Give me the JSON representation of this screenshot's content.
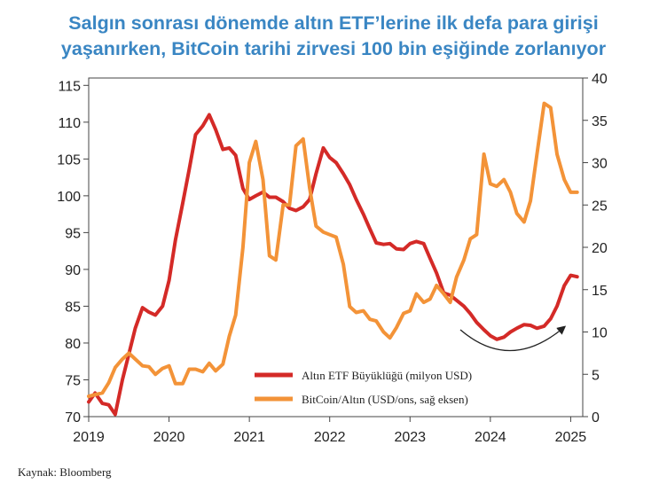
{
  "chart_data": {
    "type": "line",
    "title_line1": "Salgın sonrası dönemde altın ETF’lerine ilk defa para girişi",
    "title_line2": "yaşanırken, BitCoin tarihi zirvesi 100 bin eşiğinde zorlanıyor",
    "source": "Kaynak: Bloomberg",
    "x_ticks": [
      "2019",
      "2020",
      "2021",
      "2022",
      "2023",
      "2024",
      "2025"
    ],
    "x_range": [
      2019.0,
      2025.15
    ],
    "y_left_ticks": [
      "70",
      "75",
      "80",
      "85",
      "90",
      "95",
      "100",
      "105",
      "110",
      "115"
    ],
    "y_left_range": [
      70,
      116
    ],
    "y_right_ticks": [
      "0",
      "5",
      "10",
      "15",
      "20",
      "25",
      "30",
      "35",
      "40"
    ],
    "y_right_range": [
      0,
      40
    ],
    "colors": {
      "gold": "#d42a27",
      "btc": "#f39338"
    },
    "series": [
      {
        "name": "Altın ETF Büyüklüğü (milyon USD)",
        "axis": "left",
        "color": "#d42a27",
        "x": [
          2019.0,
          2019.08,
          2019.17,
          2019.25,
          2019.33,
          2019.42,
          2019.5,
          2019.58,
          2019.67,
          2019.75,
          2019.83,
          2019.92,
          2020.0,
          2020.08,
          2020.17,
          2020.25,
          2020.33,
          2020.42,
          2020.5,
          2020.58,
          2020.67,
          2020.75,
          2020.83,
          2020.92,
          2021.0,
          2021.08,
          2021.17,
          2021.25,
          2021.33,
          2021.42,
          2021.5,
          2021.58,
          2021.67,
          2021.75,
          2021.83,
          2021.92,
          2022.0,
          2022.08,
          2022.17,
          2022.25,
          2022.33,
          2022.42,
          2022.5,
          2022.58,
          2022.67,
          2022.75,
          2022.83,
          2022.92,
          2023.0,
          2023.08,
          2023.17,
          2023.25,
          2023.33,
          2023.42,
          2023.5,
          2023.58,
          2023.67,
          2023.75,
          2023.83,
          2023.92,
          2024.0,
          2024.08,
          2024.17,
          2024.25,
          2024.33,
          2024.42,
          2024.5,
          2024.58,
          2024.67,
          2024.75,
          2024.83,
          2024.92,
          2025.0,
          2025.08
        ],
        "values": [
          72.0,
          73.2,
          71.8,
          71.6,
          70.3,
          75.0,
          78.5,
          82.0,
          84.8,
          84.2,
          83.8,
          85.0,
          88.5,
          94.0,
          99.0,
          103.5,
          108.3,
          109.5,
          111.0,
          109.0,
          106.3,
          106.5,
          105.5,
          101.0,
          99.5,
          100.0,
          100.5,
          99.8,
          99.8,
          99.2,
          98.3,
          98.0,
          98.5,
          99.5,
          103.0,
          106.5,
          105.2,
          104.5,
          103.0,
          101.5,
          99.5,
          97.5,
          95.5,
          93.6,
          93.4,
          93.5,
          92.8,
          92.7,
          93.5,
          93.8,
          93.5,
          91.5,
          89.5,
          86.8,
          86.5,
          85.8,
          85.0,
          84.0,
          82.8,
          81.8,
          81.0,
          80.5,
          80.8,
          81.5,
          82.0,
          82.5,
          82.4,
          82.0,
          82.3,
          83.3,
          85.0,
          87.8,
          89.2,
          89.0
        ]
      },
      {
        "name": "BitCoin/Altın (USD/ons, sağ eksen)",
        "axis": "right",
        "color": "#f39338",
        "x": [
          2019.0,
          2019.08,
          2019.17,
          2019.25,
          2019.33,
          2019.42,
          2019.5,
          2019.58,
          2019.67,
          2019.75,
          2019.83,
          2019.92,
          2020.0,
          2020.08,
          2020.17,
          2020.25,
          2020.33,
          2020.42,
          2020.5,
          2020.58,
          2020.67,
          2020.75,
          2020.83,
          2020.92,
          2021.0,
          2021.08,
          2021.17,
          2021.25,
          2021.33,
          2021.42,
          2021.5,
          2021.58,
          2021.67,
          2021.75,
          2021.83,
          2021.92,
          2022.0,
          2022.08,
          2022.17,
          2022.25,
          2022.33,
          2022.42,
          2022.5,
          2022.58,
          2022.67,
          2022.75,
          2022.83,
          2022.92,
          2023.0,
          2023.08,
          2023.17,
          2023.25,
          2023.33,
          2023.42,
          2023.5,
          2023.58,
          2023.67,
          2023.75,
          2023.83,
          2023.92,
          2024.0,
          2024.08,
          2024.17,
          2024.25,
          2024.33,
          2024.42,
          2024.5,
          2024.58,
          2024.67,
          2024.75,
          2024.83,
          2024.92,
          2025.0,
          2025.08
        ],
        "values": [
          2.4,
          2.6,
          2.8,
          4.0,
          5.8,
          6.8,
          7.5,
          6.8,
          6.0,
          5.9,
          5.0,
          5.7,
          6.0,
          3.9,
          3.9,
          5.6,
          5.6,
          5.3,
          6.3,
          5.4,
          6.2,
          9.5,
          12.0,
          20.0,
          30.0,
          32.5,
          28.0,
          19.0,
          18.5,
          25.0,
          25.0,
          32.0,
          32.8,
          27.0,
          22.5,
          21.8,
          21.5,
          21.2,
          18.0,
          13.0,
          12.3,
          12.5,
          11.5,
          11.3,
          10.0,
          9.3,
          10.5,
          12.2,
          12.5,
          14.5,
          13.5,
          13.9,
          15.5,
          14.5,
          13.5,
          16.5,
          18.5,
          21.0,
          21.5,
          31.0,
          27.5,
          27.2,
          28.0,
          26.5,
          24.0,
          23.0,
          25.5,
          31.0,
          37.0,
          36.5,
          31.0,
          28.0,
          26.5,
          26.5
        ]
      }
    ],
    "annotation": "curved arrow indicating recovery of gold ETF holdings in 2024"
  }
}
